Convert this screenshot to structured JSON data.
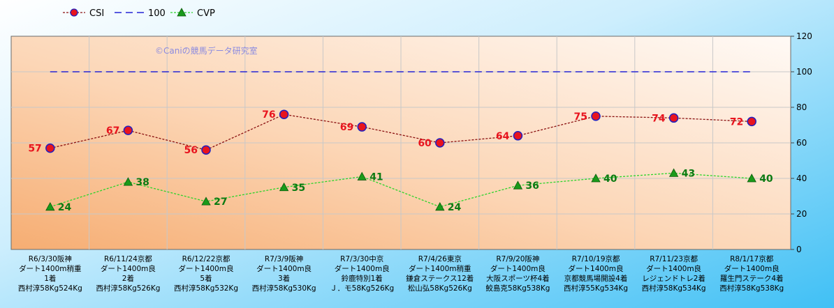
{
  "chart_data": {
    "type": "line",
    "categories": [
      [
        "R6/3/30阪神",
        "ダート1400m稍重",
        "1着",
        "西村淳58Kg524Kg"
      ],
      [
        "R6/11/24京都",
        "ダート1400m良",
        "2着",
        "西村淳58Kg526Kg"
      ],
      [
        "R6/12/22京都",
        "ダート1400m良",
        "5着",
        "西村淳58Kg532Kg"
      ],
      [
        "R7/3/9阪神",
        "ダート1400m良",
        "3着",
        "西村淳58Kg530Kg"
      ],
      [
        "R7/3/30中京",
        "ダート1400m良",
        "鈴鹿特別1着",
        "Ｊ．モ58Kg526Kg"
      ],
      [
        "R7/4/26東京",
        "ダート1400m稍重",
        "鎌倉ステークス12着",
        "松山弘58Kg526Kg"
      ],
      [
        "R7/9/20阪神",
        "ダート1400m良",
        "大阪スポーツ杯4着",
        "鮫島克58Kg538Kg"
      ],
      [
        "R7/10/19京都",
        "ダート1400m良",
        "京都競馬場開設4着",
        "西村淳55Kg534Kg"
      ],
      [
        "R7/11/23京都",
        "ダート1400m良",
        "レジェンドトレ2着",
        "西村淳58Kg534Kg"
      ],
      [
        "R8/1/17京都",
        "ダート1400m良",
        "羅生門ステーク4着",
        "西村淳58Kg538Kg"
      ]
    ],
    "series": [
      {
        "name": "CSI",
        "values": [
          57,
          67,
          56,
          76,
          69,
          60,
          64,
          75,
          74,
          72
        ],
        "color": "#e8141e"
      },
      {
        "name": "100",
        "values": [
          100,
          100,
          100,
          100,
          100,
          100,
          100,
          100,
          100,
          100
        ],
        "color": "#2020d0"
      },
      {
        "name": "CVP",
        "values": [
          24,
          38,
          27,
          35,
          41,
          24,
          36,
          40,
          43,
          40
        ],
        "color": "#0b8a12"
      }
    ],
    "ylim": [
      0,
      120
    ],
    "yticks": [
      0,
      20,
      40,
      60,
      80,
      100,
      120
    ],
    "grid": true,
    "legend_position": "top-left",
    "annotation": "©Caniの競馬データ研究室",
    "colors": {
      "background_outer": "#5bc8f5",
      "plot_gradient_top": "#fff8f0",
      "plot_gradient_bottom": "#f7b27a",
      "csi_marker_fill": "#e8141e",
      "csi_marker_stroke": "#2020c0",
      "cvp_marker": "#1a9a1a"
    }
  }
}
